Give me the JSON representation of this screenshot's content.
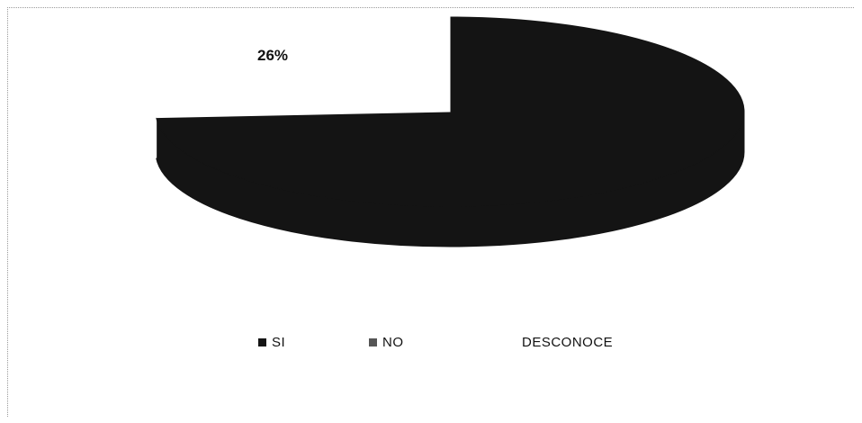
{
  "chart_data": {
    "type": "pie",
    "style": "3d",
    "categories": [
      "SI",
      "NO",
      "DESCONOCE"
    ],
    "values": [
      74,
      26,
      0
    ],
    "data_labels": [
      "",
      "26%",
      ""
    ],
    "legend_position": "bottom",
    "colors": [
      "#141414",
      "#ffffff",
      "#ffffff"
    ]
  }
}
